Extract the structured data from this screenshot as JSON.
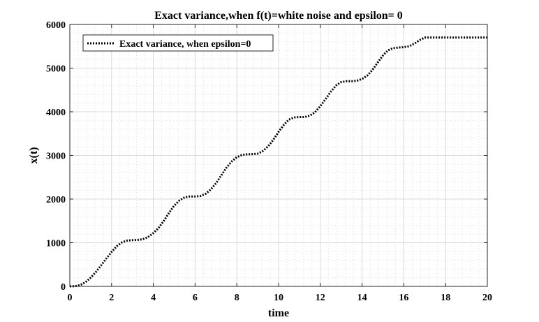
{
  "chart_data": {
    "type": "line",
    "title": "Exact variance,when f(t)=white noise and epsilon= 0",
    "xlabel": "time",
    "ylabel": "x(t)",
    "xlim": [
      0,
      20
    ],
    "ylim": [
      0,
      6000
    ],
    "xticks": [
      0,
      2,
      4,
      6,
      8,
      10,
      12,
      14,
      16,
      18,
      20
    ],
    "yticks": [
      0,
      1000,
      2000,
      3000,
      4000,
      5000,
      6000
    ],
    "grid": true,
    "minor_grid": true,
    "legend_position": "top-left",
    "series": [
      {
        "name": "Exact variance, when epsilon=0",
        "color": "#000000",
        "line_style": "dotted",
        "x": [
          0,
          0.25,
          0.5,
          0.75,
          1.0,
          1.25,
          1.5,
          1.75,
          2.0,
          2.25,
          2.5,
          2.75,
          3.0,
          3.25,
          3.5,
          3.75,
          4.0,
          4.25,
          4.5,
          4.75,
          5.0,
          5.25,
          5.5,
          5.75,
          6.0,
          6.25,
          6.5,
          6.75,
          7.0,
          7.25,
          7.5,
          7.75,
          8.0,
          8.25,
          8.5,
          8.75,
          9.0,
          9.25,
          9.5,
          9.75,
          10.0,
          10.25,
          10.5,
          10.75,
          11.0,
          11.25,
          11.5,
          11.75,
          12.0,
          12.25,
          12.5,
          12.75,
          13.0,
          13.25,
          13.5,
          13.75,
          14.0,
          14.25,
          14.5,
          14.75,
          15.0,
          15.25,
          15.5,
          15.75,
          16.0,
          16.25,
          16.5,
          16.75,
          17.0,
          17.25,
          17.5,
          17.75,
          18.0,
          18.25,
          18.5,
          18.75,
          19.0,
          19.25,
          19.5,
          19.75,
          20.0
        ],
        "y": [
          0,
          5,
          30,
          95,
          200,
          330,
          480,
          640,
          790,
          920,
          1010,
          1050,
          1060,
          1065,
          1080,
          1130,
          1220,
          1340,
          1500,
          1680,
          1850,
          1970,
          2040,
          2060,
          2060,
          2070,
          2120,
          2220,
          2360,
          2540,
          2720,
          2860,
          2960,
          3010,
          3025,
          3030,
          3040,
          3100,
          3210,
          3360,
          3540,
          3700,
          3820,
          3870,
          3880,
          3880,
          3910,
          3990,
          4130,
          4290,
          4460,
          4600,
          4680,
          4700,
          4700,
          4710,
          4750,
          4830,
          4960,
          5130,
          5290,
          5410,
          5460,
          5470,
          5480,
          5500,
          5560,
          5640,
          5700,
          5700,
          5700,
          5700,
          5700,
          5700,
          5700,
          5700,
          5700,
          5700,
          5700,
          5700,
          5700
        ]
      }
    ]
  }
}
